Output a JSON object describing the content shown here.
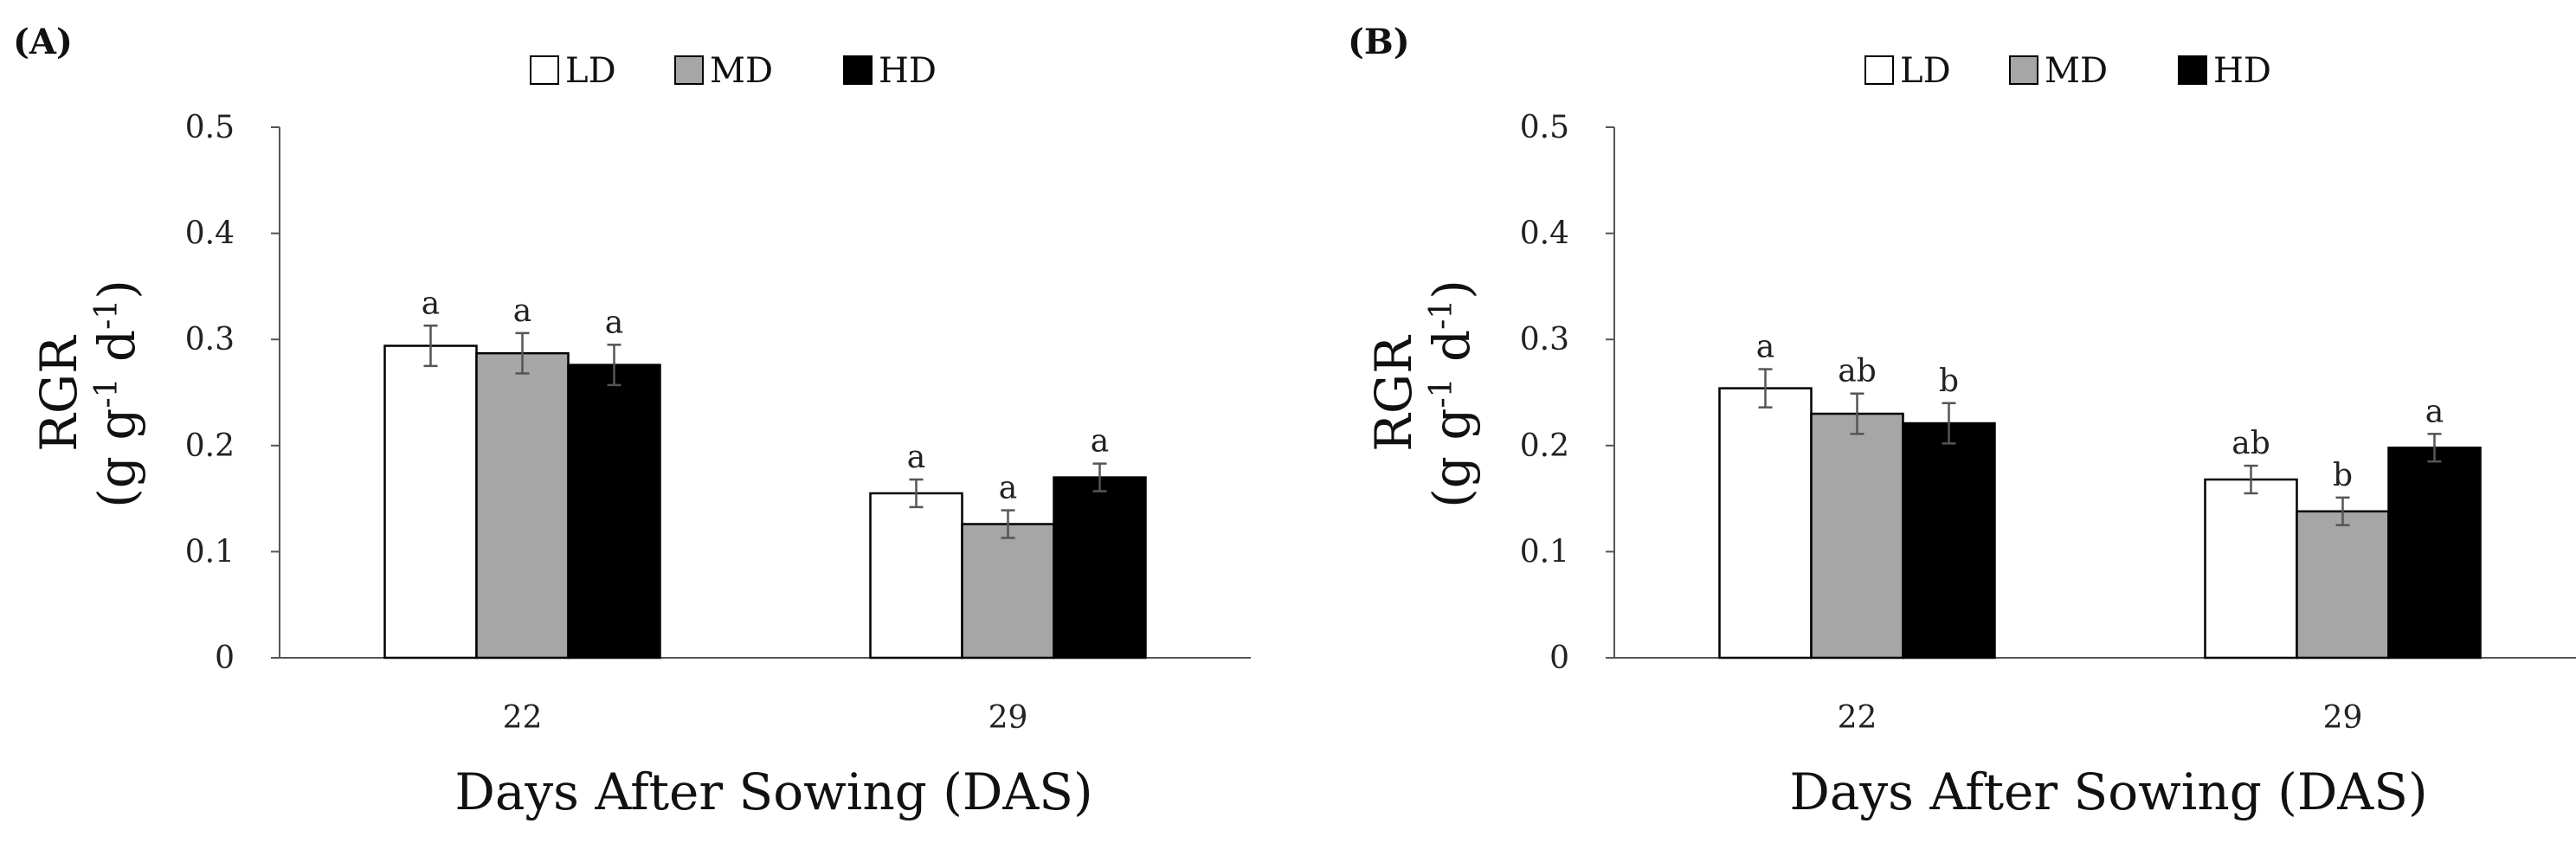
{
  "chart_data": [
    {
      "panel_label": "(A)",
      "type": "bar",
      "categories": [
        "22",
        "29"
      ],
      "series": [
        {
          "name": "LD",
          "color": "#ffffff",
          "values": [
            0.294,
            0.155
          ],
          "errors": [
            0.019,
            0.013
          ],
          "letters": [
            "a",
            "a"
          ]
        },
        {
          "name": "MD",
          "color": "#a6a6a6",
          "values": [
            0.287,
            0.126
          ],
          "errors": [
            0.019,
            0.013
          ],
          "letters": [
            "a",
            "a"
          ]
        },
        {
          "name": "HD",
          "color": "#000000",
          "values": [
            0.276,
            0.17
          ],
          "errors": [
            0.019,
            0.013
          ],
          "letters": [
            "a",
            "a"
          ]
        }
      ],
      "ylabel_line1": "RGR",
      "ylabel_line2": "(g g-1 d-1)",
      "xlabel": "Days After Sowing (DAS)",
      "ylim": [
        0,
        0.5
      ],
      "yticks": [
        "0",
        "0.1",
        "0.2",
        "0.3",
        "0.4",
        "0.5"
      ],
      "legend_position": "top-center",
      "grid": false
    },
    {
      "panel_label": "(B)",
      "type": "bar",
      "categories": [
        "22",
        "29"
      ],
      "series": [
        {
          "name": "LD",
          "color": "#ffffff",
          "values": [
            0.254,
            0.168
          ],
          "errors": [
            0.018,
            0.013
          ],
          "letters": [
            "a",
            "ab"
          ]
        },
        {
          "name": "MD",
          "color": "#a6a6a6",
          "values": [
            0.23,
            0.138
          ],
          "errors": [
            0.019,
            0.013
          ],
          "letters": [
            "ab",
            "b"
          ]
        },
        {
          "name": "HD",
          "color": "#000000",
          "values": [
            0.221,
            0.198
          ],
          "errors": [
            0.019,
            0.013
          ],
          "letters": [
            "b",
            "a"
          ]
        }
      ],
      "ylabel_line1": "RGR",
      "ylabel_line2": "(g g-1 d-1)",
      "xlabel": "Days After Sowing (DAS)",
      "ylim": [
        0,
        0.5
      ],
      "yticks": [
        "0",
        "0.1",
        "0.2",
        "0.3",
        "0.4",
        "0.5"
      ],
      "legend_position": "top-center",
      "grid": false
    }
  ]
}
